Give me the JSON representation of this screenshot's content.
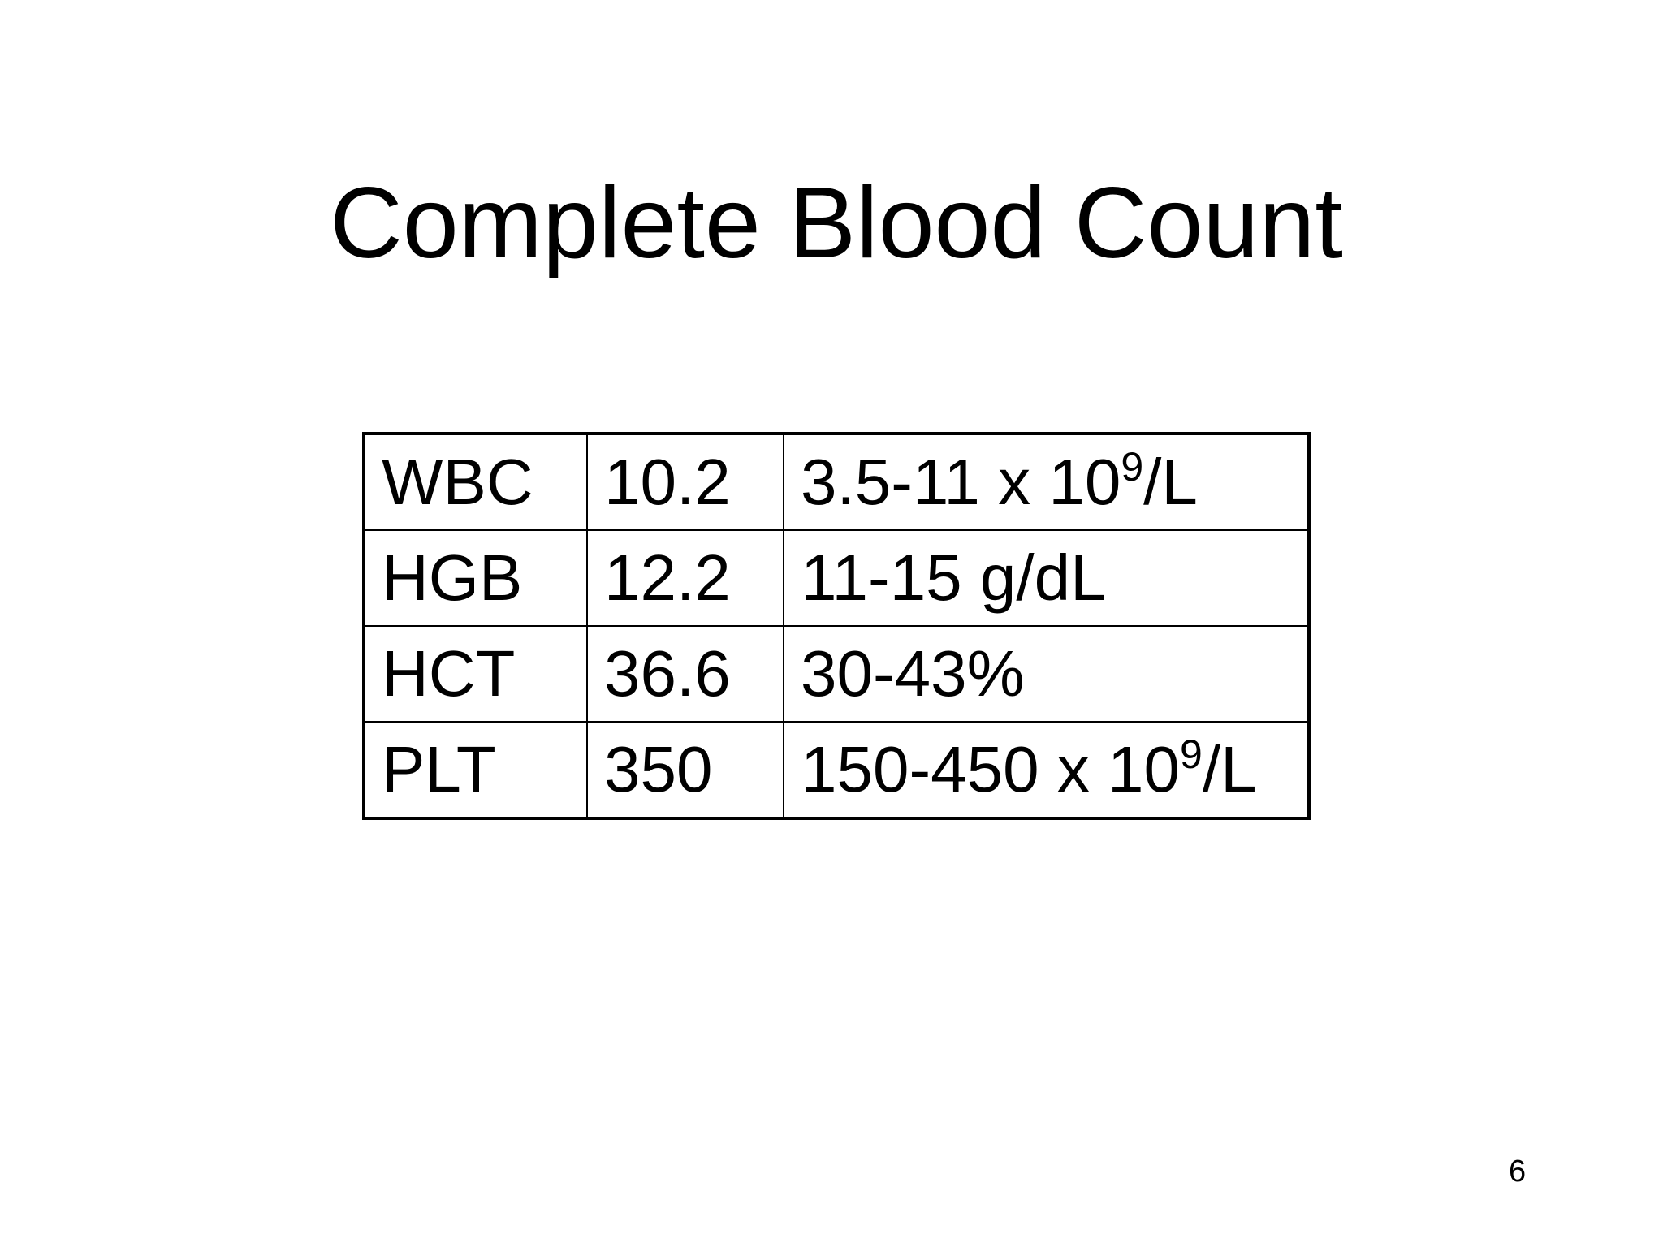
{
  "slide": {
    "title": "Complete Blood Count",
    "page_number": "6",
    "table": {
      "rows": [
        {
          "test": "WBC",
          "value": "10.2",
          "range": "3.5-11 x 10",
          "exp": "9",
          "unit": "/L"
        },
        {
          "test": "HGB",
          "value": "12.2",
          "range": "11-15 g/dL",
          "exp": null,
          "unit": ""
        },
        {
          "test": "HCT",
          "value": "36.6",
          "range": "30-43%",
          "exp": null,
          "unit": ""
        },
        {
          "test": "PLT",
          "value": "350",
          "range": "150-450 x 10",
          "exp": "9",
          "unit": "/L"
        }
      ]
    }
  }
}
